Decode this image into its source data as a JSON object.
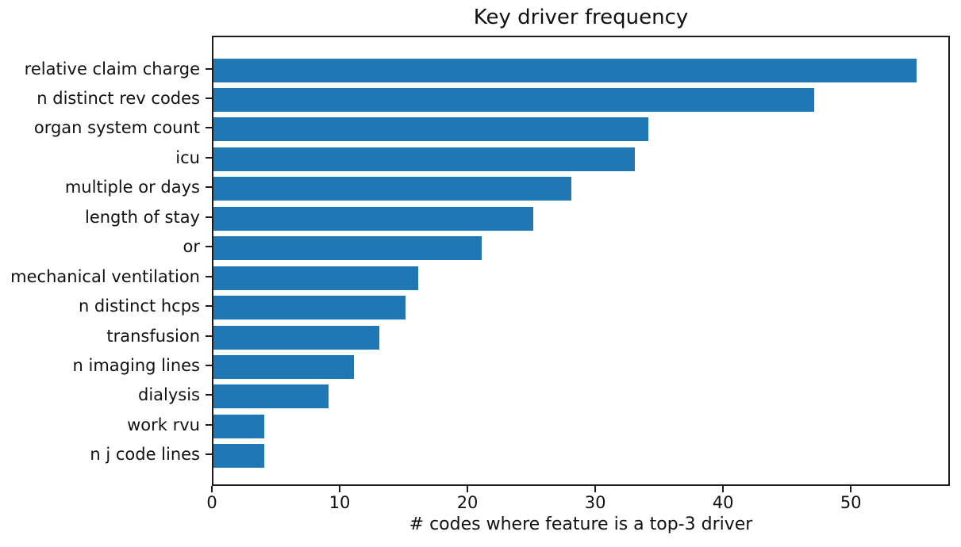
{
  "chart_data": {
    "type": "bar",
    "orientation": "horizontal",
    "title": "Key driver frequency",
    "xlabel": "# codes where feature is a top-3 driver",
    "ylabel": "",
    "categories": [
      "relative claim charge",
      "n distinct rev codes",
      "organ system count",
      "icu",
      "multiple or days",
      "length of stay",
      "or",
      "mechanical ventilation",
      "n distinct hcps",
      "transfusion",
      "n imaging lines",
      "dialysis",
      "work rvu",
      "n j code lines"
    ],
    "values": [
      55,
      47,
      34,
      33,
      28,
      25,
      21,
      16,
      15,
      13,
      11,
      9,
      4,
      4
    ],
    "xlim": [
      0,
      57.75
    ],
    "xticks": [
      0,
      10,
      20,
      30,
      40,
      50
    ],
    "bar_color": "#1f77b4",
    "spine_color": "#1c1c1c",
    "grid": false,
    "legend": null
  }
}
